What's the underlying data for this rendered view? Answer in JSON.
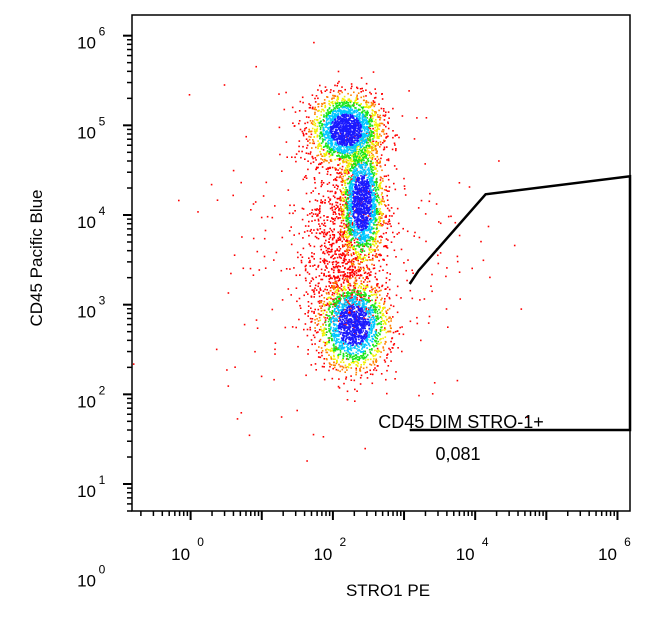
{
  "chart_data": {
    "type": "scatter",
    "subtype": "flow-cytometry density dot plot",
    "xlabel": "STRO1  PE",
    "ylabel": "CD45 Pacific Blue",
    "x_scale": "log",
    "y_scale": "log",
    "xlim": [
      0.15,
      1500000
    ],
    "ylim": [
      5,
      1700000
    ],
    "x_ticks": [
      {
        "value": 1,
        "base": "10",
        "exp": "0"
      },
      {
        "value": 100,
        "base": "10",
        "exp": "2"
      },
      {
        "value": 10000,
        "base": "10",
        "exp": "4"
      },
      {
        "value": 1000000,
        "base": "10",
        "exp": "6"
      }
    ],
    "y_ticks": [
      {
        "value": 1,
        "base": "10",
        "exp": "0"
      },
      {
        "value": 10,
        "base": "10",
        "exp": "1"
      },
      {
        "value": 100,
        "base": "10",
        "exp": "2"
      },
      {
        "value": 1000,
        "base": "10",
        "exp": "3"
      },
      {
        "value": 10000,
        "base": "10",
        "exp": "4"
      },
      {
        "value": 100000,
        "base": "10",
        "exp": "5"
      },
      {
        "value": 1000000,
        "base": "10",
        "exp": "6"
      }
    ],
    "density_colormap": [
      "#1a1aff",
      "#00c8ff",
      "#19e619",
      "#f0f000",
      "#ff8000",
      "#ff0000"
    ],
    "clusters": [
      {
        "x_center": 150,
        "y_center": 90000,
        "spread_x_decades": 0.25,
        "spread_y_decades": 0.2,
        "peak": "orange"
      },
      {
        "x_center": 250,
        "y_center": 14000,
        "spread_x_decades": 0.15,
        "spread_y_decades": 0.35,
        "peak": "red"
      },
      {
        "x_center": 190,
        "y_center": 600,
        "spread_x_decades": 0.25,
        "spread_y_decades": 0.25,
        "peak": "yellow"
      }
    ],
    "gate": {
      "name": "CD45 DIM STRO-1+",
      "value": "0,081",
      "vertices": [
        [
          1200,
          1700
        ],
        [
          1600,
          2400
        ],
        [
          14000,
          17000
        ],
        [
          1500000,
          27000
        ],
        [
          1500000,
          40
        ],
        [
          1200,
          40
        ]
      ]
    }
  }
}
